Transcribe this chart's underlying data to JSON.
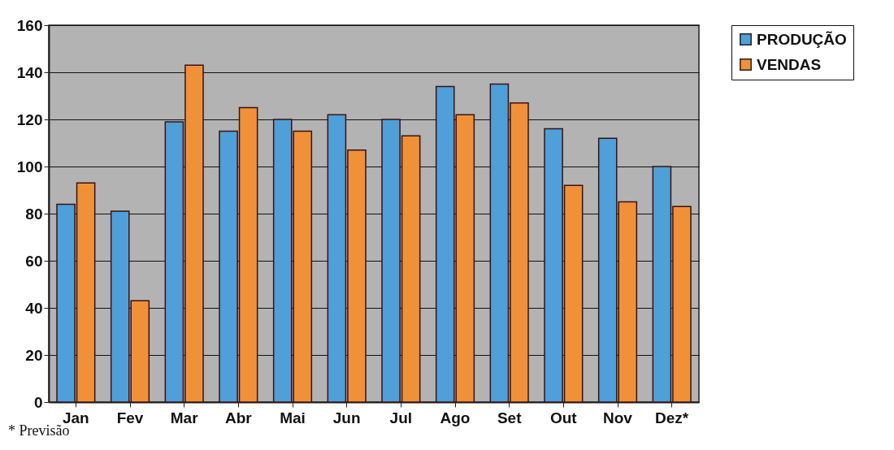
{
  "chart_data": {
    "type": "bar",
    "categories": [
      "Jan",
      "Fev",
      "Mar",
      "Abr",
      "Mai",
      "Jun",
      "Jul",
      "Ago",
      "Set",
      "Out",
      "Nov",
      "Dez*"
    ],
    "series": [
      {
        "name": "PRODUÇÃO",
        "color": "#4f9fd8",
        "values": [
          84,
          81,
          119,
          115,
          120,
          122,
          120,
          134,
          135,
          116,
          112,
          100
        ]
      },
      {
        "name": "VENDAS",
        "color": "#f0913a",
        "values": [
          93,
          43,
          143,
          125,
          115,
          107,
          113,
          122,
          127,
          92,
          85,
          83
        ]
      }
    ],
    "ylim": [
      0,
      160
    ],
    "yticks": [
      0,
      20,
      40,
      60,
      80,
      100,
      120,
      140,
      160
    ],
    "grid": "y",
    "legend": "right",
    "annotations": [
      "* Previsão"
    ]
  }
}
